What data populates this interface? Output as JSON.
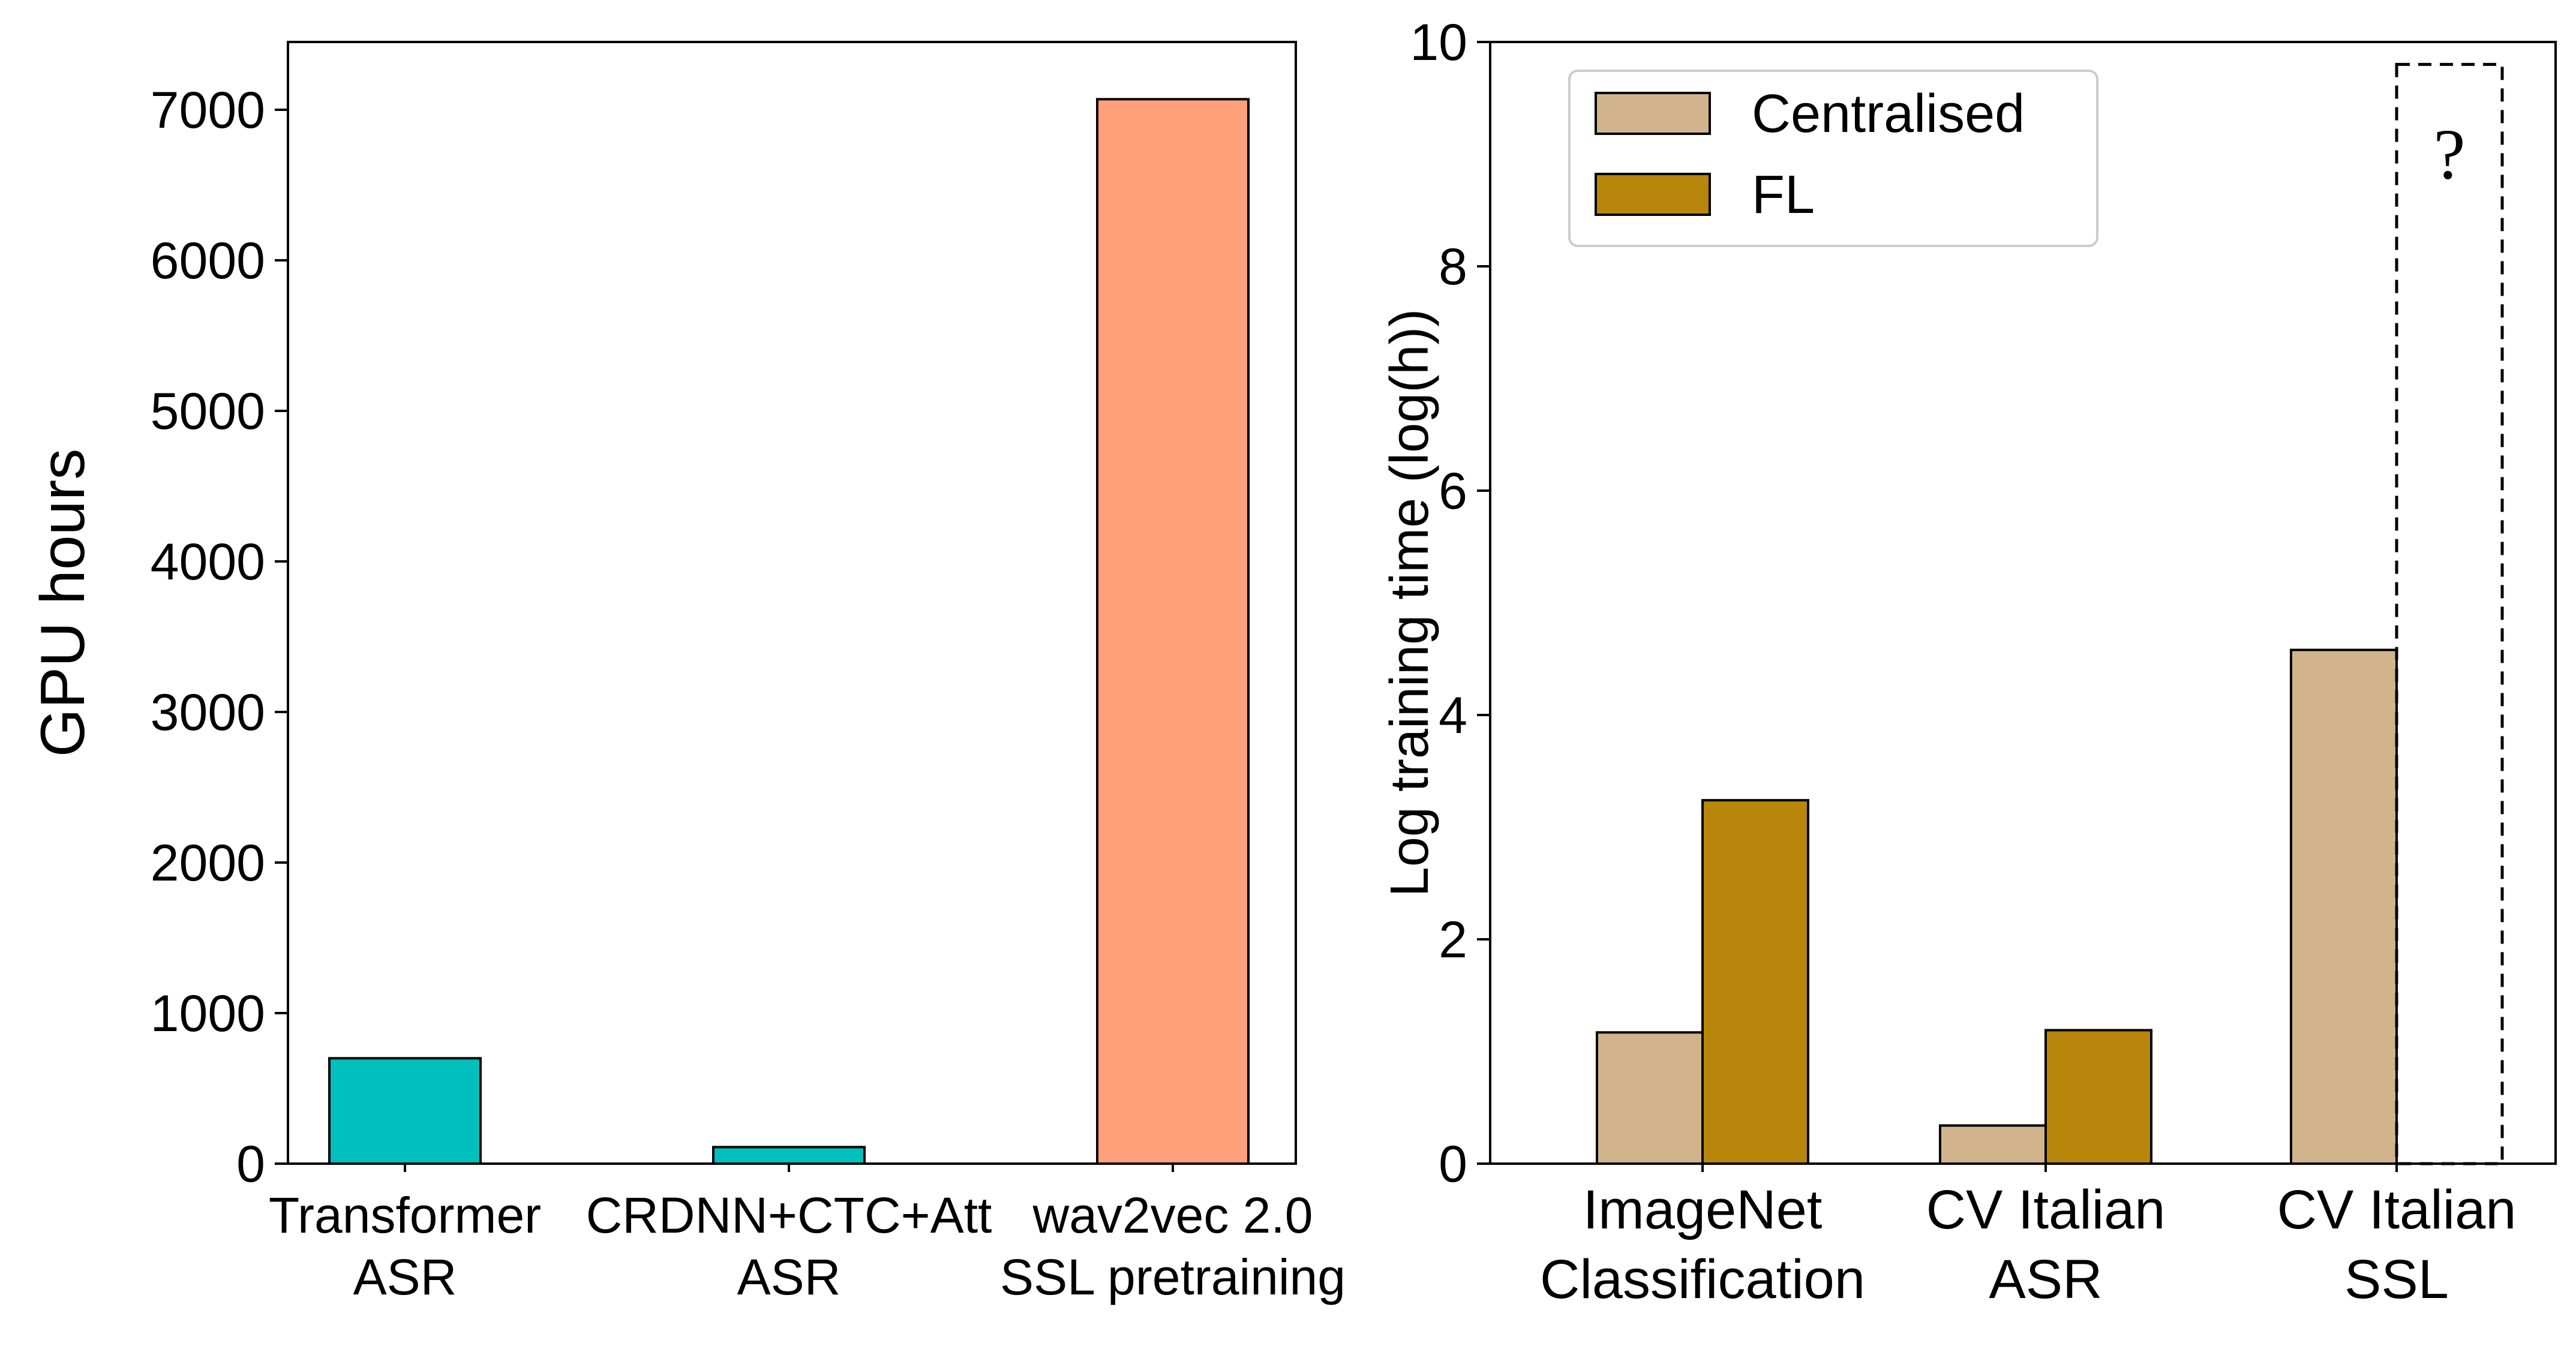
{
  "chart_data": [
    {
      "type": "bar",
      "title": "",
      "xlabel": "",
      "ylabel": "GPU hours",
      "ylim": [
        0,
        7450
      ],
      "yticks": [
        "0",
        "1000",
        "2000",
        "3000",
        "4000",
        "5000",
        "6000",
        "7000"
      ],
      "ytick_values": [
        0,
        1000,
        2000,
        3000,
        4000,
        5000,
        6000,
        7000
      ],
      "categories": [
        [
          "Transformer",
          "ASR"
        ],
        [
          "CRDNN+CTC+Att",
          "ASR"
        ],
        [
          "wav2vec 2.0",
          "SSL pretraining"
        ]
      ],
      "values": [
        700,
        110,
        7070
      ],
      "colors": [
        "#00c0bd",
        "#00c0bd",
        "#ffa07a"
      ],
      "grid": false
    },
    {
      "type": "bar",
      "title": "",
      "xlabel": "",
      "ylabel": "Log training time (log(h))",
      "ylim": [
        0,
        10
      ],
      "yticks": [
        "0",
        "2",
        "4",
        "6",
        "8",
        "10"
      ],
      "ytick_values": [
        0,
        2,
        4,
        6,
        8,
        10
      ],
      "categories": [
        [
          "ImageNet",
          "Classification"
        ],
        [
          "CV Italian",
          "ASR"
        ],
        [
          "CV Italian",
          "SSL"
        ]
      ],
      "series": [
        {
          "name": "Centralised",
          "color": "#d2b48c",
          "values": [
            1.17,
            0.34,
            4.58
          ]
        },
        {
          "name": "FL",
          "color": "#b8860b",
          "values": [
            3.24,
            1.19,
            null
          ]
        }
      ],
      "unknown_bar": {
        "category_index": 2,
        "series": "FL",
        "top_value": 9.8,
        "label": "?"
      },
      "legend": {
        "placement": "top-left",
        "entries": [
          "Centralised",
          "FL"
        ]
      },
      "grid": false
    }
  ]
}
